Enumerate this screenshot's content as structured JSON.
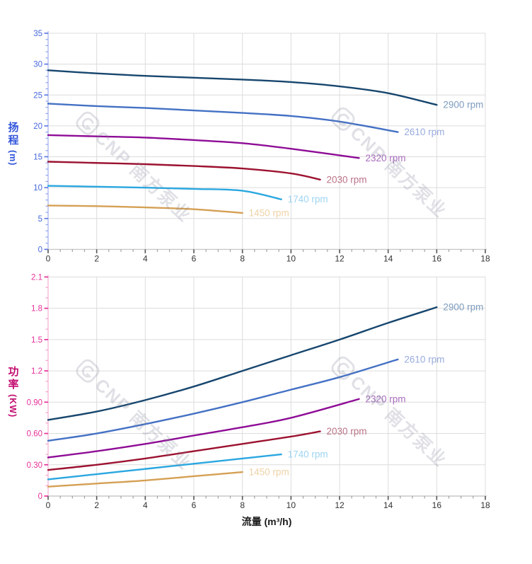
{
  "watermark": {
    "text": "CNP 南方泵业",
    "color": "rgba(125,131,152,0.24)"
  },
  "grid_color": "#dcdcdc",
  "x_style": {
    "axis_line": "#c9c9c9",
    "major_tick": "#555555",
    "minor_tick": "#999999",
    "tick_label": "#333333"
  },
  "chart_data": [
    {
      "type": "line",
      "name": "head-vs-flow",
      "title": "",
      "ylabel": "扬程",
      "ylabel_unit": "(m)",
      "xlabel": "",
      "xlim": [
        0,
        18
      ],
      "ylim": [
        0,
        35
      ],
      "x_minor_step": 0.5,
      "y_minor_step": 1,
      "x_ticks": {
        "values": [
          0,
          2,
          4,
          6,
          8,
          10,
          12,
          14,
          16,
          18
        ],
        "labels": [
          "0",
          "2",
          "4",
          "6",
          "8",
          "10",
          "12",
          "14",
          "16",
          "18"
        ]
      },
      "y_ticks": {
        "values": [
          0,
          5,
          10,
          15,
          20,
          25,
          30,
          35
        ],
        "labels": [
          "0",
          "5",
          "10",
          "15",
          "20",
          "25",
          "30",
          "35"
        ]
      },
      "style": {
        "tick_label": "#4668dd",
        "axis_title": "#3155da",
        "axis_line": "#b9c3f0",
        "major_tick": "#5f7ce4",
        "minor_tick": "#8fa3ec"
      },
      "legend_position": "right-of-curve-end",
      "grid": true,
      "series": [
        {
          "name": "2900 rpm",
          "color": "#17466e",
          "label_color": "#7d9cbe",
          "points": [
            [
              0,
              29
            ],
            [
              2,
              28.5
            ],
            [
              4,
              28.1
            ],
            [
              6,
              27.8
            ],
            [
              8,
              27.5
            ],
            [
              10,
              27.1
            ],
            [
              12,
              26.4
            ],
            [
              14,
              25.3
            ],
            [
              16,
              23.4
            ]
          ]
        },
        {
          "name": "2610 rpm",
          "color": "#4471c4",
          "label_color": "#98abde",
          "points": [
            [
              0,
              23.6
            ],
            [
              2,
              23.2
            ],
            [
              4,
              22.9
            ],
            [
              6,
              22.5
            ],
            [
              8,
              22.1
            ],
            [
              10,
              21.6
            ],
            [
              12,
              20.7
            ],
            [
              14.4,
              19.0
            ]
          ]
        },
        {
          "name": "2320 rpm",
          "color": "#8e0c96",
          "label_color": "#a96cbd",
          "points": [
            [
              0,
              18.5
            ],
            [
              2,
              18.3
            ],
            [
              4,
              18.1
            ],
            [
              6,
              17.7
            ],
            [
              8,
              17.2
            ],
            [
              10,
              16.3
            ],
            [
              12.8,
              14.8
            ]
          ]
        },
        {
          "name": "2030 rpm",
          "color": "#9c1230",
          "label_color": "#ba7386",
          "points": [
            [
              0,
              14.2
            ],
            [
              2,
              14.0
            ],
            [
              4,
              13.8
            ],
            [
              6,
              13.5
            ],
            [
              8,
              13.1
            ],
            [
              10,
              12.3
            ],
            [
              11.2,
              11.3
            ]
          ]
        },
        {
          "name": "1740 rpm",
          "color": "#2aa7e0",
          "label_color": "#9ed4f2",
          "points": [
            [
              0,
              10.3
            ],
            [
              2,
              10.15
            ],
            [
              4,
              10.0
            ],
            [
              6,
              9.8
            ],
            [
              8,
              9.5
            ],
            [
              9.6,
              8.1
            ]
          ]
        },
        {
          "name": "1450 rpm",
          "color": "#d5a055",
          "label_color": "#eed2a6",
          "points": [
            [
              0,
              7.1
            ],
            [
              2,
              7.0
            ],
            [
              4,
              6.8
            ],
            [
              6,
              6.5
            ],
            [
              8,
              5.9
            ]
          ]
        }
      ]
    },
    {
      "type": "line",
      "name": "power-vs-flow",
      "title": "",
      "ylabel": "功率",
      "ylabel_unit": "(KW)",
      "xlabel": "流量 (m³/h)",
      "xlim": [
        0,
        18
      ],
      "ylim": [
        0,
        2.1
      ],
      "x_minor_step": 0.5,
      "y_minor_step": 0.1,
      "x_ticks": {
        "values": [
          0,
          2,
          4,
          6,
          8,
          10,
          12,
          14,
          16,
          18
        ],
        "labels": [
          "0",
          "2",
          "4",
          "6",
          "8",
          "10",
          "12",
          "14",
          "16",
          "18"
        ]
      },
      "y_ticks": {
        "values": [
          0,
          0.3,
          0.6,
          0.9,
          1.2,
          1.5,
          1.8,
          2.1
        ],
        "labels": [
          "0",
          "0.30",
          "0.60",
          "0.90",
          "1.2",
          "1.5",
          "1.8",
          "2.1"
        ]
      },
      "style": {
        "tick_label": "#e6309a",
        "axis_title": "#c30d70",
        "axis_line": "#f5c3dd",
        "major_tick": "#e6309a",
        "minor_tick": "#f6a0cc"
      },
      "legend_position": "right-of-curve-end",
      "grid": true,
      "series": [
        {
          "name": "2900 rpm",
          "color": "#17466e",
          "label_color": "#7d9cbe",
          "points": [
            [
              0,
              0.73
            ],
            [
              2,
              0.81
            ],
            [
              4,
              0.92
            ],
            [
              6,
              1.05
            ],
            [
              8,
              1.2
            ],
            [
              10,
              1.35
            ],
            [
              12,
              1.5
            ],
            [
              14,
              1.66
            ],
            [
              16,
              1.81
            ]
          ]
        },
        {
          "name": "2610 rpm",
          "color": "#4471c4",
          "label_color": "#98abde",
          "points": [
            [
              0,
              0.53
            ],
            [
              2,
              0.6
            ],
            [
              4,
              0.69
            ],
            [
              6,
              0.79
            ],
            [
              8,
              0.9
            ],
            [
              10,
              1.02
            ],
            [
              12,
              1.14
            ],
            [
              14.4,
              1.31
            ]
          ]
        },
        {
          "name": "2320 rpm",
          "color": "#8e0c96",
          "label_color": "#a96cbd",
          "points": [
            [
              0,
              0.37
            ],
            [
              2,
              0.43
            ],
            [
              4,
              0.5
            ],
            [
              6,
              0.58
            ],
            [
              8,
              0.66
            ],
            [
              10,
              0.75
            ],
            [
              12.8,
              0.93
            ]
          ]
        },
        {
          "name": "2030 rpm",
          "color": "#9c1230",
          "label_color": "#ba7386",
          "points": [
            [
              0,
              0.25
            ],
            [
              2,
              0.3
            ],
            [
              4,
              0.36
            ],
            [
              6,
              0.43
            ],
            [
              8,
              0.5
            ],
            [
              10,
              0.57
            ],
            [
              11.2,
              0.62
            ]
          ]
        },
        {
          "name": "1740 rpm",
          "color": "#2aa7e0",
          "label_color": "#9ed4f2",
          "points": [
            [
              0,
              0.16
            ],
            [
              2,
              0.21
            ],
            [
              4,
              0.26
            ],
            [
              6,
              0.31
            ],
            [
              8,
              0.36
            ],
            [
              9.6,
              0.4
            ]
          ]
        },
        {
          "name": "1450 rpm",
          "color": "#d5a055",
          "label_color": "#eed2a6",
          "points": [
            [
              0,
              0.09
            ],
            [
              2,
              0.12
            ],
            [
              4,
              0.15
            ],
            [
              6,
              0.19
            ],
            [
              8,
              0.23
            ]
          ]
        }
      ]
    }
  ]
}
